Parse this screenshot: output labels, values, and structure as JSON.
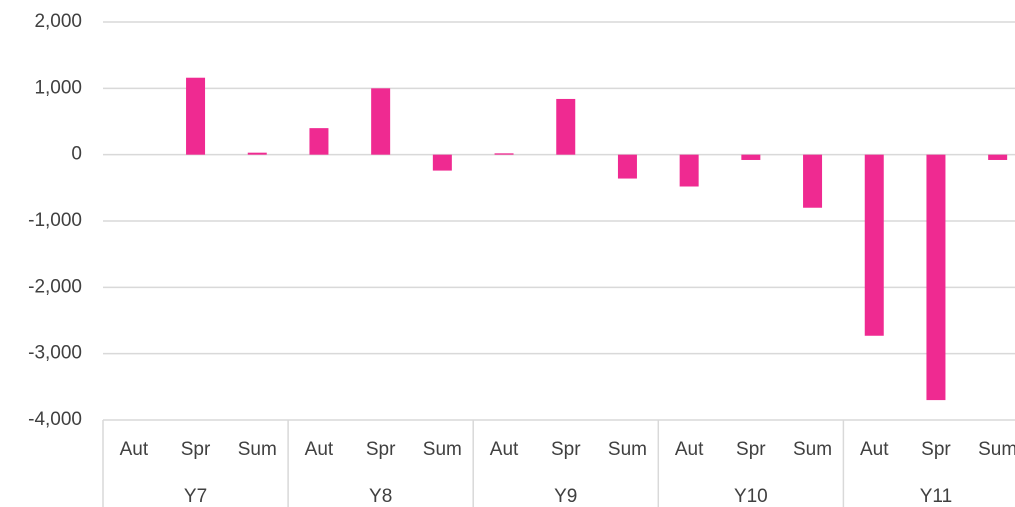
{
  "chart_data": {
    "type": "bar",
    "categories": [
      "Aut",
      "Spr",
      "Sum",
      "Aut",
      "Spr",
      "Sum",
      "Aut",
      "Spr",
      "Sum",
      "Aut",
      "Spr",
      "Sum",
      "Aut",
      "Spr",
      "Sum"
    ],
    "groups": [
      "Y7",
      "Y8",
      "Y9",
      "Y10",
      "Y11"
    ],
    "values": [
      0,
      1160,
      30,
      400,
      1000,
      -240,
      20,
      840,
      -360,
      -480,
      -80,
      -800,
      -2730,
      -3700,
      -80
    ],
    "color": "#ef2a91",
    "ylim": [
      -4000,
      2000
    ],
    "yticks": [
      {
        "value": -4000,
        "label": "-4,000"
      },
      {
        "value": -3000,
        "label": "-3,000"
      },
      {
        "value": -2000,
        "label": "-2,000"
      },
      {
        "value": -1000,
        "label": "-1,000"
      },
      0,
      {
        "value": 1000,
        "label": "1,000"
      },
      {
        "value": 2000,
        "label": "2,000"
      }
    ],
    "grid": true
  }
}
